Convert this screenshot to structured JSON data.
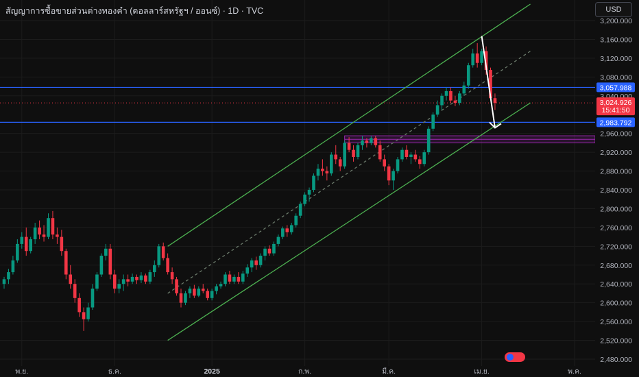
{
  "header": {
    "title": "สัญญาการซื้อขายส่วนต่างทองคำ (ดอลลาร์สหรัฐฯ / ออนซ์) · 1D · TVC",
    "currency_button": "USD"
  },
  "colors": {
    "background": "#0f0f0f",
    "grid": "#1c1c1c",
    "axis_text": "#b2b5be",
    "up": "#089981",
    "down": "#f23645",
    "channel": "#4caf50",
    "level_line": "#2962ff",
    "zone": "#9c27b0",
    "arrow": "#ffffff"
  },
  "chart_data": {
    "type": "candlestick",
    "title": "สัญญาการซื้อขายส่วนต่างทองคำ (ดอลลาร์สหรัฐฯ / ออนซ์) · 1D · TVC",
    "y_axis_ticks": [
      "3,200.000",
      "3,160.000",
      "3,120.000",
      "3,080.000",
      "3,040.000",
      "2,960.000",
      "2,920.000",
      "2,880.000",
      "2,840.000",
      "2,800.000",
      "2,760.000",
      "2,720.000",
      "2,680.000",
      "2,640.000",
      "2,600.000",
      "2,560.000",
      "2,520.000",
      "2,480.000"
    ],
    "x_axis_ticks": [
      {
        "label": "พ.ย.",
        "index": 4
      },
      {
        "label": "ธ.ค.",
        "index": 25
      },
      {
        "label": "2025",
        "index": 47
      },
      {
        "label": "ก.พ.",
        "index": 68
      },
      {
        "label": "มี.ค.",
        "index": 87
      },
      {
        "label": "เม.ย.",
        "index": 108
      },
      {
        "label": "พ.ค.",
        "index": 129
      }
    ],
    "y_min": 2470,
    "y_max": 3220,
    "price_labels": [
      {
        "label": "3,057.988",
        "value": 3057.988,
        "kind": "level"
      },
      {
        "label": "3,024.926",
        "value": 3024.926,
        "kind": "last",
        "countdown": "15:41:50"
      },
      {
        "label": "2,983.792",
        "value": 2983.792,
        "kind": "level"
      }
    ],
    "horizontal_levels": [
      3057.988,
      2983.792
    ],
    "support_zone": {
      "from": 2940,
      "to": 2955,
      "start_index": 77
    },
    "channel": {
      "start_index": 37,
      "end_index": 119,
      "upper": [
        2720,
        3235
      ],
      "middle": [
        2620,
        3135
      ],
      "lower": [
        2520,
        3025
      ]
    },
    "projection_arrow": {
      "from_index": 108,
      "from_value": 3167,
      "to_index": 111,
      "to_value": 2972
    },
    "candles": [
      {
        "o": 2640,
        "h": 2655,
        "l": 2630,
        "c": 2650
      },
      {
        "o": 2650,
        "h": 2672,
        "l": 2640,
        "c": 2665
      },
      {
        "o": 2665,
        "h": 2700,
        "l": 2660,
        "c": 2690
      },
      {
        "o": 2690,
        "h": 2735,
        "l": 2685,
        "c": 2725
      },
      {
        "o": 2725,
        "h": 2750,
        "l": 2715,
        "c": 2740
      },
      {
        "o": 2740,
        "h": 2760,
        "l": 2700,
        "c": 2710
      },
      {
        "o": 2710,
        "h": 2740,
        "l": 2705,
        "c": 2735
      },
      {
        "o": 2735,
        "h": 2770,
        "l": 2725,
        "c": 2760
      },
      {
        "o": 2760,
        "h": 2775,
        "l": 2735,
        "c": 2745
      },
      {
        "o": 2745,
        "h": 2765,
        "l": 2730,
        "c": 2740
      },
      {
        "o": 2740,
        "h": 2790,
        "l": 2735,
        "c": 2780
      },
      {
        "o": 2780,
        "h": 2795,
        "l": 2735,
        "c": 2745
      },
      {
        "o": 2745,
        "h": 2760,
        "l": 2725,
        "c": 2740
      },
      {
        "o": 2740,
        "h": 2755,
        "l": 2700,
        "c": 2710
      },
      {
        "o": 2710,
        "h": 2715,
        "l": 2650,
        "c": 2660
      },
      {
        "o": 2660,
        "h": 2680,
        "l": 2630,
        "c": 2640
      },
      {
        "o": 2640,
        "h": 2650,
        "l": 2600,
        "c": 2610
      },
      {
        "o": 2610,
        "h": 2620,
        "l": 2570,
        "c": 2580
      },
      {
        "o": 2580,
        "h": 2590,
        "l": 2540,
        "c": 2565
      },
      {
        "o": 2565,
        "h": 2600,
        "l": 2560,
        "c": 2590
      },
      {
        "o": 2590,
        "h": 2640,
        "l": 2585,
        "c": 2630
      },
      {
        "o": 2630,
        "h": 2665,
        "l": 2625,
        "c": 2660
      },
      {
        "o": 2660,
        "h": 2705,
        "l": 2655,
        "c": 2700
      },
      {
        "o": 2700,
        "h": 2725,
        "l": 2690,
        "c": 2715
      },
      {
        "o": 2715,
        "h": 2725,
        "l": 2650,
        "c": 2660
      },
      {
        "o": 2660,
        "h": 2670,
        "l": 2620,
        "c": 2630
      },
      {
        "o": 2630,
        "h": 2650,
        "l": 2620,
        "c": 2640
      },
      {
        "o": 2640,
        "h": 2660,
        "l": 2625,
        "c": 2650
      },
      {
        "o": 2650,
        "h": 2660,
        "l": 2635,
        "c": 2645
      },
      {
        "o": 2645,
        "h": 2662,
        "l": 2640,
        "c": 2655
      },
      {
        "o": 2655,
        "h": 2660,
        "l": 2640,
        "c": 2648
      },
      {
        "o": 2648,
        "h": 2665,
        "l": 2642,
        "c": 2658
      },
      {
        "o": 2658,
        "h": 2662,
        "l": 2640,
        "c": 2645
      },
      {
        "o": 2645,
        "h": 2670,
        "l": 2640,
        "c": 2665
      },
      {
        "o": 2665,
        "h": 2690,
        "l": 2655,
        "c": 2680
      },
      {
        "o": 2680,
        "h": 2725,
        "l": 2675,
        "c": 2720
      },
      {
        "o": 2720,
        "h": 2728,
        "l": 2690,
        "c": 2695
      },
      {
        "o": 2695,
        "h": 2705,
        "l": 2660,
        "c": 2665
      },
      {
        "o": 2665,
        "h": 2675,
        "l": 2640,
        "c": 2650
      },
      {
        "o": 2650,
        "h": 2655,
        "l": 2615,
        "c": 2620
      },
      {
        "o": 2620,
        "h": 2630,
        "l": 2590,
        "c": 2600
      },
      {
        "o": 2600,
        "h": 2625,
        "l": 2595,
        "c": 2620
      },
      {
        "o": 2620,
        "h": 2635,
        "l": 2610,
        "c": 2630
      },
      {
        "o": 2630,
        "h": 2638,
        "l": 2610,
        "c": 2615
      },
      {
        "o": 2615,
        "h": 2635,
        "l": 2612,
        "c": 2630
      },
      {
        "o": 2630,
        "h": 2640,
        "l": 2620,
        "c": 2625
      },
      {
        "o": 2625,
        "h": 2630,
        "l": 2605,
        "c": 2610
      },
      {
        "o": 2610,
        "h": 2630,
        "l": 2605,
        "c": 2625
      },
      {
        "o": 2625,
        "h": 2640,
        "l": 2618,
        "c": 2635
      },
      {
        "o": 2635,
        "h": 2645,
        "l": 2630,
        "c": 2640
      },
      {
        "o": 2640,
        "h": 2665,
        "l": 2635,
        "c": 2660
      },
      {
        "o": 2660,
        "h": 2668,
        "l": 2640,
        "c": 2645
      },
      {
        "o": 2645,
        "h": 2660,
        "l": 2640,
        "c": 2655
      },
      {
        "o": 2655,
        "h": 2665,
        "l": 2640,
        "c": 2645
      },
      {
        "o": 2645,
        "h": 2668,
        "l": 2640,
        "c": 2662
      },
      {
        "o": 2662,
        "h": 2682,
        "l": 2655,
        "c": 2675
      },
      {
        "o": 2675,
        "h": 2695,
        "l": 2665,
        "c": 2690
      },
      {
        "o": 2690,
        "h": 2698,
        "l": 2670,
        "c": 2680
      },
      {
        "o": 2680,
        "h": 2705,
        "l": 2675,
        "c": 2700
      },
      {
        "o": 2700,
        "h": 2720,
        "l": 2690,
        "c": 2715
      },
      {
        "o": 2715,
        "h": 2722,
        "l": 2700,
        "c": 2705
      },
      {
        "o": 2705,
        "h": 2730,
        "l": 2700,
        "c": 2725
      },
      {
        "o": 2725,
        "h": 2745,
        "l": 2720,
        "c": 2740
      },
      {
        "o": 2740,
        "h": 2762,
        "l": 2735,
        "c": 2758
      },
      {
        "o": 2758,
        "h": 2765,
        "l": 2740,
        "c": 2750
      },
      {
        "o": 2750,
        "h": 2770,
        "l": 2745,
        "c": 2765
      },
      {
        "o": 2765,
        "h": 2790,
        "l": 2760,
        "c": 2785
      },
      {
        "o": 2785,
        "h": 2815,
        "l": 2780,
        "c": 2810
      },
      {
        "o": 2810,
        "h": 2835,
        "l": 2805,
        "c": 2830
      },
      {
        "o": 2830,
        "h": 2845,
        "l": 2815,
        "c": 2840
      },
      {
        "o": 2840,
        "h": 2875,
        "l": 2835,
        "c": 2870
      },
      {
        "o": 2870,
        "h": 2895,
        "l": 2860,
        "c": 2885
      },
      {
        "o": 2885,
        "h": 2905,
        "l": 2870,
        "c": 2880
      },
      {
        "o": 2880,
        "h": 2890,
        "l": 2860,
        "c": 2875
      },
      {
        "o": 2875,
        "h": 2920,
        "l": 2870,
        "c": 2915
      },
      {
        "o": 2915,
        "h": 2935,
        "l": 2895,
        "c": 2905
      },
      {
        "o": 2905,
        "h": 2910,
        "l": 2880,
        "c": 2890
      },
      {
        "o": 2890,
        "h": 2945,
        "l": 2885,
        "c": 2940
      },
      {
        "o": 2940,
        "h": 2952,
        "l": 2920,
        "c": 2925
      },
      {
        "o": 2925,
        "h": 2935,
        "l": 2900,
        "c": 2910
      },
      {
        "o": 2910,
        "h": 2940,
        "l": 2905,
        "c": 2935
      },
      {
        "o": 2935,
        "h": 2955,
        "l": 2925,
        "c": 2945
      },
      {
        "o": 2945,
        "h": 2950,
        "l": 2930,
        "c": 2940
      },
      {
        "o": 2940,
        "h": 2955,
        "l": 2935,
        "c": 2950
      },
      {
        "o": 2950,
        "h": 2955,
        "l": 2930,
        "c": 2935
      },
      {
        "o": 2935,
        "h": 2945,
        "l": 2900,
        "c": 2905
      },
      {
        "o": 2905,
        "h": 2915,
        "l": 2880,
        "c": 2890
      },
      {
        "o": 2890,
        "h": 2895,
        "l": 2850,
        "c": 2860
      },
      {
        "o": 2860,
        "h": 2885,
        "l": 2840,
        "c": 2880
      },
      {
        "o": 2880,
        "h": 2910,
        "l": 2875,
        "c": 2905
      },
      {
        "o": 2905,
        "h": 2930,
        "l": 2900,
        "c": 2925
      },
      {
        "o": 2925,
        "h": 2935,
        "l": 2905,
        "c": 2910
      },
      {
        "o": 2910,
        "h": 2920,
        "l": 2895,
        "c": 2915
      },
      {
        "o": 2915,
        "h": 2925,
        "l": 2900,
        "c": 2905
      },
      {
        "o": 2905,
        "h": 2912,
        "l": 2885,
        "c": 2895
      },
      {
        "o": 2895,
        "h": 2925,
        "l": 2890,
        "c": 2920
      },
      {
        "o": 2920,
        "h": 2975,
        "l": 2915,
        "c": 2970
      },
      {
        "o": 2970,
        "h": 3005,
        "l": 2965,
        "c": 3000
      },
      {
        "o": 3000,
        "h": 3030,
        "l": 2995,
        "c": 3020
      },
      {
        "o": 3020,
        "h": 3045,
        "l": 3010,
        "c": 3040
      },
      {
        "o": 3040,
        "h": 3058,
        "l": 3030,
        "c": 3050
      },
      {
        "o": 3050,
        "h": 3058,
        "l": 3025,
        "c": 3030
      },
      {
        "o": 3030,
        "h": 3040,
        "l": 3018,
        "c": 3025
      },
      {
        "o": 3025,
        "h": 3050,
        "l": 3020,
        "c": 3045
      },
      {
        "o": 3045,
        "h": 3070,
        "l": 3040,
        "c": 3062
      },
      {
        "o": 3062,
        "h": 3110,
        "l": 3055,
        "c": 3105
      },
      {
        "o": 3105,
        "h": 3140,
        "l": 3100,
        "c": 3130
      },
      {
        "o": 3130,
        "h": 3152,
        "l": 3100,
        "c": 3110
      },
      {
        "o": 3110,
        "h": 3140,
        "l": 3105,
        "c": 3135
      },
      {
        "o": 3135,
        "h": 3145,
        "l": 3085,
        "c": 3095
      },
      {
        "o": 3095,
        "h": 3100,
        "l": 3030,
        "c": 3035
      },
      {
        "o": 3035,
        "h": 3045,
        "l": 3010,
        "c": 3024.926
      }
    ]
  }
}
